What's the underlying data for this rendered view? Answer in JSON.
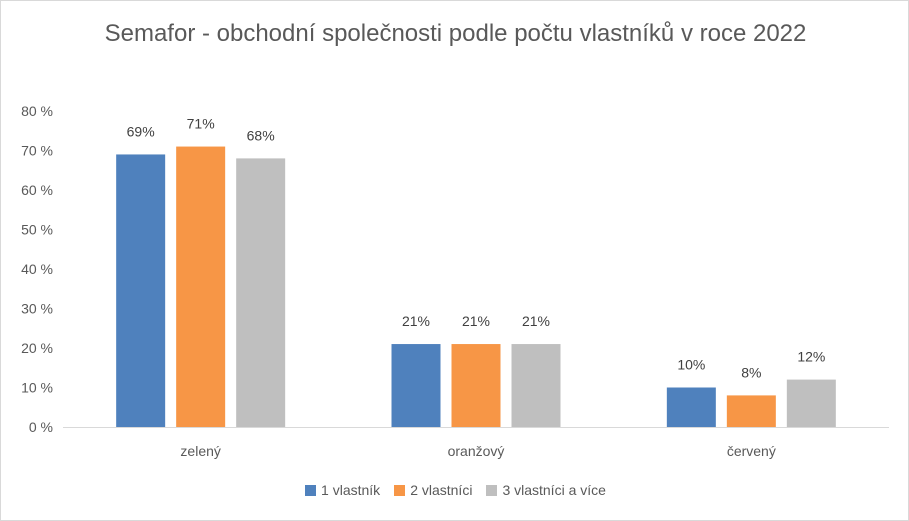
{
  "chart_data": {
    "type": "bar",
    "title": "Semafor - obchodní společnosti podle počtu vlastníků v roce 2022",
    "categories": [
      "zelený",
      "oranžový",
      "červený"
    ],
    "series": [
      {
        "name": "1 vlastník",
        "values": [
          69,
          21,
          10
        ],
        "labels": [
          "69%",
          "21%",
          "10%"
        ],
        "color": "#4f81bd"
      },
      {
        "name": "2 vlastníci",
        "values": [
          71,
          21,
          8
        ],
        "labels": [
          "71%",
          "21%",
          "8%"
        ],
        "color": "#f79646"
      },
      {
        "name": "3 vlastníci a více",
        "values": [
          68,
          21,
          12
        ],
        "labels": [
          "68%",
          "21%",
          "12%"
        ],
        "color": "#bfbfbf"
      }
    ],
    "yticks": [
      "0 %",
      "10 %",
      "20 %",
      "30 %",
      "40 %",
      "50 %",
      "60 %",
      "70 %",
      "80 %"
    ],
    "ylim": [
      0,
      80
    ],
    "grid": false,
    "legend_position": "bottom"
  }
}
